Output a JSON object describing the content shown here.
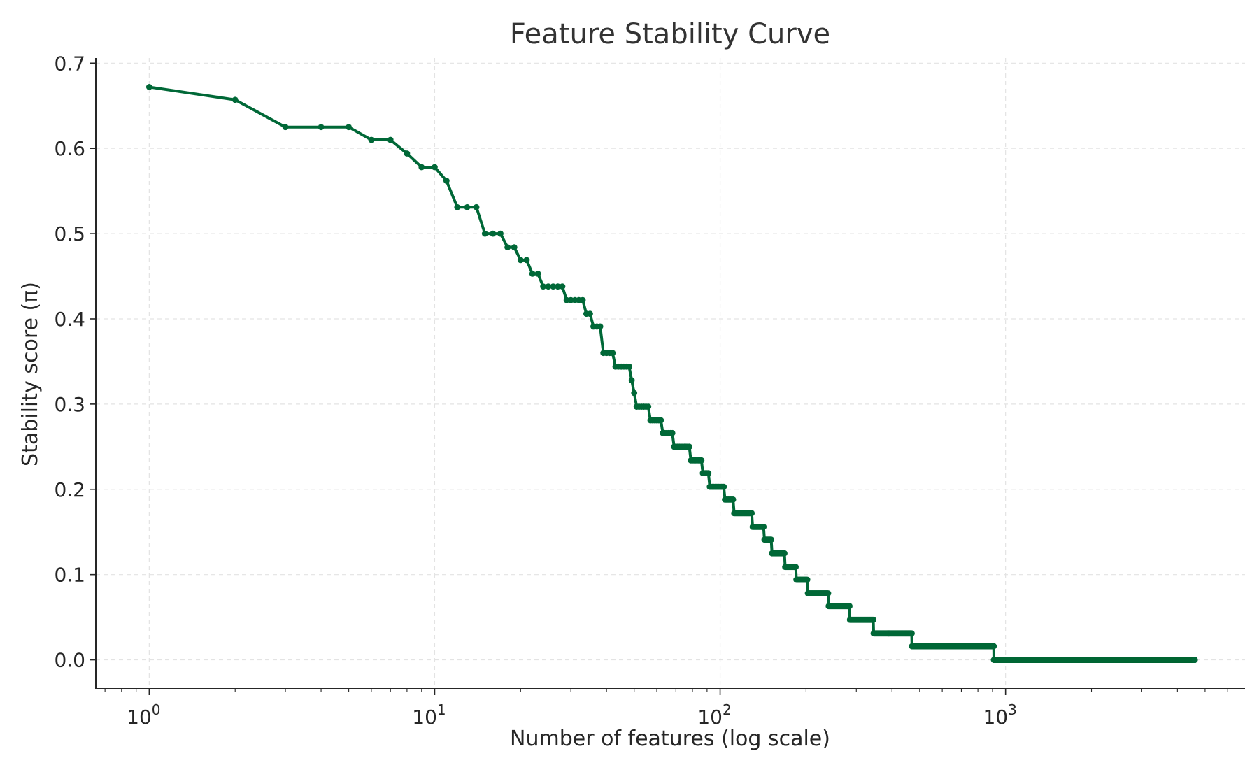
{
  "chart_data": {
    "type": "line",
    "title": "Feature Stability Curve",
    "xlabel": "Number of features (log scale)",
    "ylabel": "Stability score (π)",
    "xscale": "log",
    "xlim": [
      0.65,
      6900
    ],
    "ylim": [
      -0.034,
      0.706
    ],
    "grid": true,
    "x_ticks": [
      {
        "value": 1,
        "base": "10",
        "exp": "0"
      },
      {
        "value": 10,
        "base": "10",
        "exp": "1"
      },
      {
        "value": 100,
        "base": "10",
        "exp": "2"
      },
      {
        "value": 1000,
        "base": "10",
        "exp": "3"
      }
    ],
    "y_ticks": [
      {
        "value": 0.0,
        "label": "0.0"
      },
      {
        "value": 0.1,
        "label": "0.1"
      },
      {
        "value": 0.2,
        "label": "0.2"
      },
      {
        "value": 0.3,
        "label": "0.3"
      },
      {
        "value": 0.4,
        "label": "0.4"
      },
      {
        "value": 0.5,
        "label": "0.5"
      },
      {
        "value": 0.6,
        "label": "0.6"
      },
      {
        "value": 0.7,
        "label": "0.7"
      }
    ],
    "series": [
      {
        "name": "Stability score",
        "color": "#006837",
        "x_start": 1,
        "x_end": 4600,
        "steps": [
          [
            1,
            0.672
          ],
          [
            2,
            0.657
          ],
          [
            3,
            0.625
          ],
          [
            6,
            0.61
          ],
          [
            8,
            0.594
          ],
          [
            9,
            0.578
          ],
          [
            11,
            0.562
          ],
          [
            12,
            0.531
          ],
          [
            15,
            0.5
          ],
          [
            18,
            0.484
          ],
          [
            20,
            0.469
          ],
          [
            22,
            0.453
          ],
          [
            24,
            0.438
          ],
          [
            29,
            0.422
          ],
          [
            34,
            0.406
          ],
          [
            36,
            0.391
          ],
          [
            39,
            0.36
          ],
          [
            43,
            0.344
          ],
          [
            49,
            0.328
          ],
          [
            50,
            0.313
          ],
          [
            51,
            0.297
          ],
          [
            57,
            0.281
          ],
          [
            63,
            0.266
          ],
          [
            69,
            0.25
          ],
          [
            79,
            0.234
          ],
          [
            87,
            0.219
          ],
          [
            92,
            0.203
          ],
          [
            104,
            0.188
          ],
          [
            112,
            0.172
          ],
          [
            130,
            0.156
          ],
          [
            143,
            0.141
          ],
          [
            152,
            0.125
          ],
          [
            169,
            0.109
          ],
          [
            185,
            0.094
          ],
          [
            203,
            0.078
          ],
          [
            240,
            0.063
          ],
          [
            285,
            0.047
          ],
          [
            345,
            0.031
          ],
          [
            470,
            0.016
          ],
          [
            910,
            0.0
          ]
        ]
      }
    ]
  }
}
